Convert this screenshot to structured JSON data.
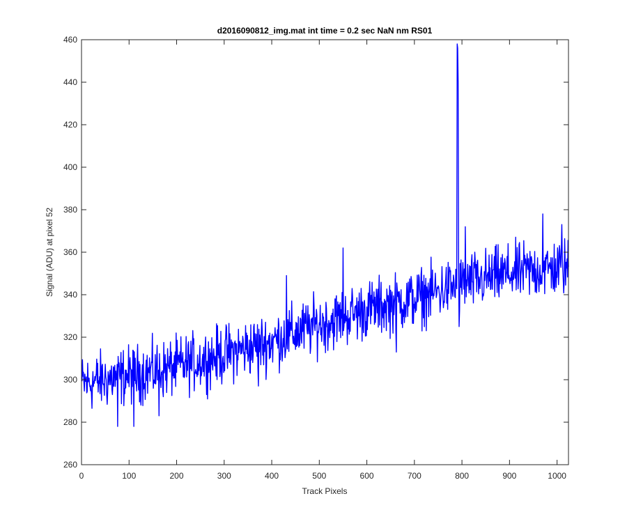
{
  "chart_data": {
    "type": "line",
    "title": "d2016090812_img.mat int time = 0.2 sec  NaN nm RS01",
    "xlabel": "Track Pixels",
    "ylabel": "Signal (ADU) at pixel 52",
    "xlim": [
      0,
      1024
    ],
    "ylim": [
      260,
      460
    ],
    "xticks": [
      0,
      100,
      200,
      300,
      400,
      500,
      600,
      700,
      800,
      900,
      1000
    ],
    "yticks": [
      260,
      280,
      300,
      320,
      340,
      360,
      380,
      400,
      420,
      440,
      460
    ],
    "grid": false,
    "legend": "none",
    "line_color": "#0000ff",
    "series": [
      {
        "x_step": 1,
        "x_start": 1,
        "trend": [
          [
            0,
            298
          ],
          [
            100,
            302
          ],
          [
            200,
            306
          ],
          [
            300,
            312
          ],
          [
            400,
            318
          ],
          [
            500,
            326
          ],
          [
            600,
            333
          ],
          [
            700,
            338
          ],
          [
            800,
            345
          ],
          [
            900,
            350
          ],
          [
            1024,
            353
          ]
        ],
        "noise_amplitude": 10,
        "spikes": [
          [
            431,
            349
          ],
          [
            550,
            362
          ],
          [
            790,
            458
          ],
          [
            791,
            456
          ],
          [
            792,
            440
          ],
          [
            807,
            372
          ],
          [
            970,
            378
          ],
          [
            1010,
            373
          ]
        ],
        "dips": [
          [
            76,
            278
          ],
          [
            110,
            278
          ],
          [
            163,
            283
          ],
          [
            372,
            297
          ],
          [
            662,
            313
          ],
          [
            794,
            325
          ]
        ]
      }
    ]
  }
}
